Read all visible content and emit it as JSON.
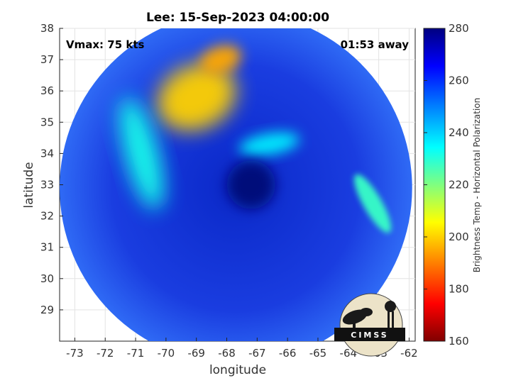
{
  "chart_data": {
    "type": "heatmap",
    "title": "Lee: 15-Sep-2023 04:00:00",
    "xlabel": "longitude",
    "ylabel": "latitude",
    "xlim": [
      -73.5,
      -61.8
    ],
    "ylim": [
      28.0,
      38.0
    ],
    "x_ticks": [
      -73,
      -72,
      -71,
      -70,
      -69,
      -68,
      -67,
      -66,
      -65,
      -64,
      -63,
      -62
    ],
    "y_ticks": [
      29,
      30,
      31,
      32,
      33,
      34,
      35,
      36,
      37,
      38
    ],
    "grid": true,
    "annotations": {
      "left": "Vmax: 75 kts",
      "right": "01:53 away"
    },
    "colorbar": {
      "label": "Brightness Temp - Horizontal Polarization",
      "range": [
        160,
        280
      ],
      "ticks": [
        160,
        180,
        200,
        220,
        240,
        260,
        280
      ],
      "colormap": "jet"
    },
    "swath": {
      "center_lon": -67.7,
      "center_lat": 32.9,
      "radius_deg": 5.8
    },
    "eye": {
      "lon": -67.2,
      "lat": 33.0
    },
    "features": [
      {
        "name": "northwest cold band",
        "lon": -69.0,
        "lat": 35.8,
        "value": 200
      },
      {
        "name": "northern cloud mass",
        "lon": -68.2,
        "lat": 37.0,
        "value": 195
      },
      {
        "name": "western spiral band",
        "lon": -70.8,
        "lat": 34.0,
        "value": 232
      },
      {
        "name": "eastern rainband",
        "lon": -63.2,
        "lat": 32.4,
        "value": 228
      },
      {
        "name": "inner eyewall",
        "lon": -66.6,
        "lat": 34.3,
        "value": 236
      }
    ]
  },
  "logo": {
    "text": "CIMSS"
  }
}
